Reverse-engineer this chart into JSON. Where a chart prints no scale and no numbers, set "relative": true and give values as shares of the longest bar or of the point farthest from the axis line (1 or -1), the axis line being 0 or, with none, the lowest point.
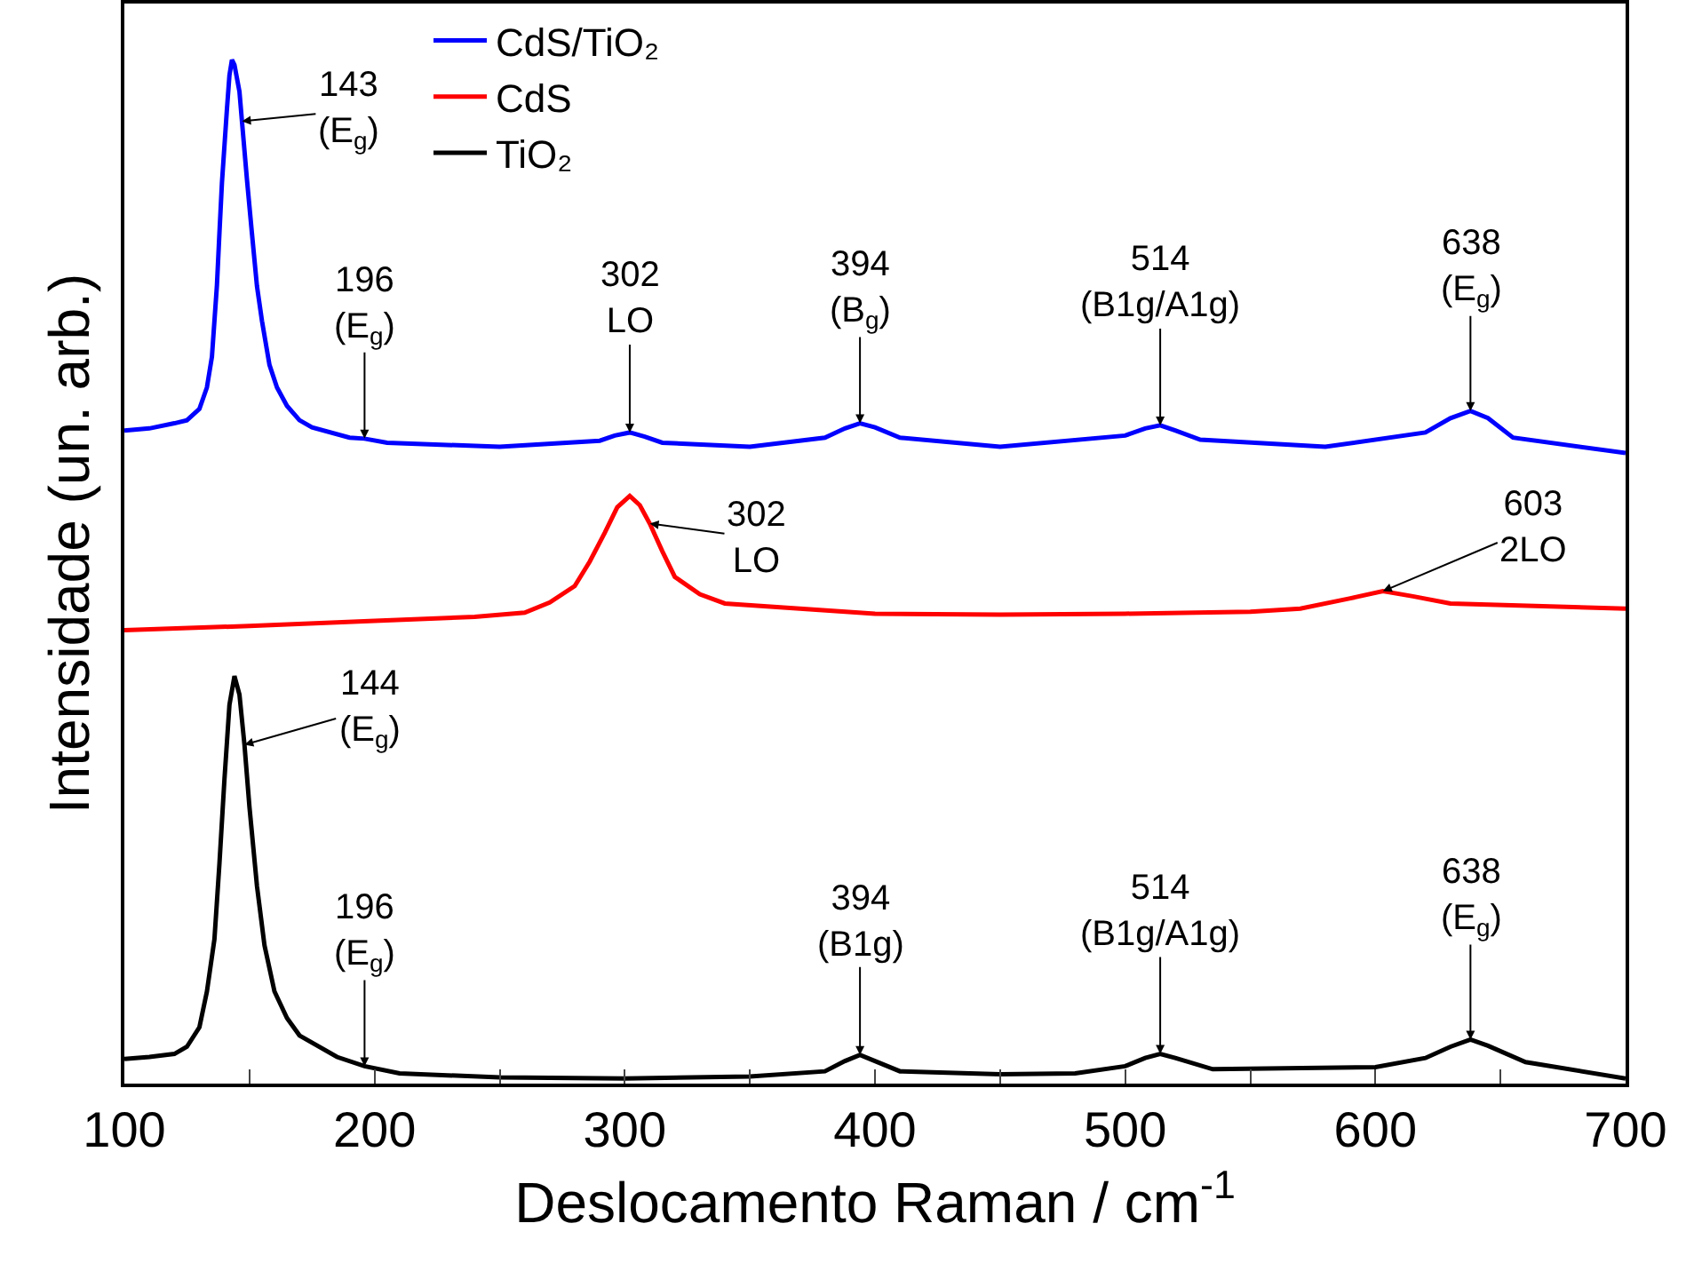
{
  "chart_data": {
    "type": "line",
    "relative": true,
    "xlabel": "Deslocamento Raman / cm$^{-1}$",
    "ylabel": "Intensidade (un. arb.)",
    "xlim": [
      100,
      700
    ],
    "xticks": [
      100,
      {
        "value": 150,
        "label": null
      },
      200,
      {
        "value": 250,
        "label": null
      },
      300,
      {
        "value": 350,
        "label": null
      },
      400,
      {
        "value": 450,
        "label": null
      },
      500,
      {
        "value": 550,
        "label": null
      },
      600,
      {
        "value": 650,
        "label": null
      },
      700
    ],
    "legend": "top left",
    "marker": "none",
    "line_style": "solid",
    "series": [
      {
        "name": "CdS/TiO₂",
        "color": "#0000ff",
        "x": [
          100,
          110,
          120,
          125,
          130,
          133,
          135,
          137,
          138,
          139,
          141,
          142,
          143,
          144,
          146,
          147,
          149,
          151,
          153,
          155,
          158,
          161,
          165,
          170,
          175,
          190,
          196,
          205,
          250,
          290,
          296,
          302,
          308,
          315,
          350,
          380,
          388,
          394,
          400,
          410,
          450,
          500,
          508,
          514,
          520,
          530,
          580,
          620,
          630,
          638,
          645,
          655,
          700
        ],
        "values": [
          0.638,
          0.64,
          0.645,
          0.648,
          0.659,
          0.68,
          0.71,
          0.78,
          0.831,
          0.88,
          0.952,
          0.985,
          1.0,
          0.995,
          0.969,
          0.94,
          0.883,
          0.83,
          0.779,
          0.745,
          0.702,
          0.68,
          0.662,
          0.648,
          0.641,
          0.631,
          0.63,
          0.626,
          0.622,
          0.628,
          0.633,
          0.636,
          0.632,
          0.626,
          0.622,
          0.631,
          0.64,
          0.645,
          0.641,
          0.631,
          0.622,
          0.633,
          0.64,
          0.643,
          0.638,
          0.629,
          0.622,
          0.636,
          0.65,
          0.657,
          0.65,
          0.631,
          0.616
        ]
      },
      {
        "name": "CdS",
        "color": "#ff0000",
        "x": [
          100,
          150,
          200,
          240,
          260,
          270,
          280,
          286,
          292,
          297,
          302,
          306,
          310,
          315,
          320,
          330,
          340,
          400,
          450,
          500,
          550,
          570,
          590,
          603,
          615,
          630,
          700
        ],
        "values": [
          0.443,
          0.447,
          0.452,
          0.456,
          0.46,
          0.47,
          0.486,
          0.51,
          0.538,
          0.563,
          0.574,
          0.565,
          0.547,
          0.52,
          0.495,
          0.478,
          0.469,
          0.459,
          0.458,
          0.459,
          0.461,
          0.464,
          0.474,
          0.481,
          0.476,
          0.469,
          0.464
        ]
      },
      {
        "name": "TiO₂",
        "color": "#000000",
        "x": [
          100,
          110,
          120,
          125,
          130,
          133,
          136,
          138,
          140,
          142,
          144,
          146,
          148,
          150,
          153,
          156,
          160,
          165,
          170,
          185,
          196,
          210,
          250,
          300,
          350,
          380,
          388,
          394,
          400,
          410,
          450,
          480,
          500,
          508,
          514,
          520,
          535,
          600,
          620,
          630,
          638,
          645,
          660,
          700
        ],
        "values": [
          0.024,
          0.026,
          0.029,
          0.036,
          0.055,
          0.09,
          0.141,
          0.215,
          0.297,
          0.37,
          0.398,
          0.38,
          0.331,
          0.27,
          0.193,
          0.135,
          0.09,
          0.064,
          0.047,
          0.026,
          0.017,
          0.01,
          0.006,
          0.005,
          0.007,
          0.012,
          0.022,
          0.028,
          0.022,
          0.012,
          0.009,
          0.01,
          0.017,
          0.025,
          0.029,
          0.025,
          0.014,
          0.016,
          0.025,
          0.036,
          0.043,
          0.037,
          0.021,
          0.005
        ]
      }
    ],
    "annotations": [
      {
        "text": "143\n(E$_{g}$)",
        "x": 147,
        "y": 0.94
      },
      {
        "text": "196\n(E$_{g}$)",
        "x": 196,
        "y": 0.63
      },
      {
        "text": "302\nLO",
        "x": 302,
        "y": 0.636
      },
      {
        "text": "394\n(B$_{g}$)",
        "x": 394,
        "y": 0.645
      },
      {
        "text": "514\n(B1g/A1g)",
        "x": 514,
        "y": 0.643
      },
      {
        "text": "638\n(E$_{g}$)",
        "x": 638,
        "y": 0.657
      },
      {
        "text": "302\nLO",
        "x": 310,
        "y": 0.547
      },
      {
        "text": "603\n2LO",
        "x": 603,
        "y": 0.481
      },
      {
        "text": "144\n(E$_{g}$)",
        "x": 148,
        "y": 0.331
      },
      {
        "text": "196\n(E$_{g}$)",
        "x": 196,
        "y": 0.017
      },
      {
        "text": "394\n(B1g)",
        "x": 394,
        "y": 0.028
      },
      {
        "text": "514\n(B1g/A1g)",
        "x": 514,
        "y": 0.029
      },
      {
        "text": "638\n(E$_{g}$)",
        "x": 638,
        "y": 0.043
      }
    ]
  }
}
